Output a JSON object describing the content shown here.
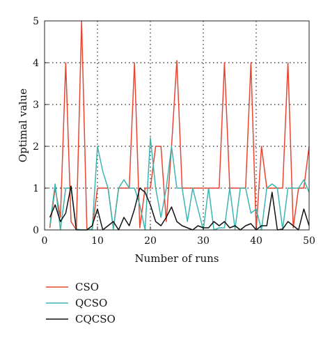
{
  "chart_data": {
    "type": "line",
    "xlabel": "Number of runs",
    "ylabel": "Optimal value",
    "xlim": [
      0,
      50
    ],
    "ylim": [
      0,
      5
    ],
    "xticks": [
      0,
      10,
      20,
      30,
      40,
      50
    ],
    "yticks": [
      0,
      1,
      2,
      3,
      4,
      5
    ],
    "grid": "dotted",
    "legend_position": "below",
    "x": [
      1,
      2,
      3,
      4,
      5,
      6,
      7,
      8,
      9,
      10,
      11,
      12,
      13,
      14,
      15,
      16,
      17,
      18,
      19,
      20,
      21,
      22,
      23,
      24,
      25,
      26,
      27,
      28,
      29,
      30,
      31,
      32,
      33,
      34,
      35,
      36,
      37,
      38,
      39,
      40,
      41,
      42,
      43,
      44,
      45,
      46,
      47,
      48,
      49,
      50
    ],
    "series": [
      {
        "name": "CSO",
        "color": "#e8442f",
        "values": [
          0.05,
          1.0,
          0.3,
          4.0,
          0.2,
          0.0,
          5.0,
          0.02,
          0.0,
          1.0,
          1.0,
          1.0,
          0.03,
          1.0,
          1.0,
          1.0,
          4.0,
          0.05,
          1.0,
          1.0,
          2.0,
          2.0,
          0.2,
          2.0,
          4.05,
          1.0,
          1.0,
          1.0,
          1.0,
          1.0,
          1.0,
          1.0,
          1.0,
          4.0,
          1.0,
          1.0,
          1.0,
          1.0,
          4.0,
          0.0,
          2.0,
          1.0,
          1.0,
          1.0,
          1.0,
          4.0,
          0.05,
          1.0,
          1.0,
          2.0
        ]
      },
      {
        "name": "QCSO",
        "color": "#3ab5b0",
        "values": [
          0.1,
          1.1,
          0.0,
          1.0,
          1.0,
          0.02,
          0.0,
          0.0,
          0.02,
          2.0,
          1.4,
          1.0,
          0.02,
          1.0,
          1.2,
          1.0,
          1.0,
          0.6,
          0.0,
          2.2,
          1.0,
          0.3,
          1.0,
          2.0,
          1.0,
          1.0,
          0.2,
          1.0,
          0.5,
          0.0,
          1.0,
          0.0,
          0.05,
          0.05,
          1.0,
          0.02,
          1.0,
          1.0,
          0.4,
          0.5,
          0.0,
          1.0,
          1.1,
          1.0,
          0.02,
          1.0,
          1.0,
          1.0,
          1.2,
          0.9
        ]
      },
      {
        "name": "CQCSO",
        "color": "#111111",
        "values": [
          0.3,
          0.6,
          0.2,
          0.4,
          1.05,
          0.0,
          0.0,
          0.0,
          0.1,
          0.5,
          0.0,
          0.1,
          0.2,
          0.0,
          0.3,
          0.1,
          0.5,
          1.0,
          0.9,
          0.6,
          0.2,
          0.1,
          0.3,
          0.55,
          0.2,
          0.1,
          0.05,
          0.0,
          0.1,
          0.05,
          0.05,
          0.2,
          0.1,
          0.2,
          0.05,
          0.1,
          0.0,
          0.1,
          0.15,
          0.0,
          0.1,
          0.1,
          0.9,
          0.0,
          0.02,
          0.2,
          0.1,
          0.0,
          0.5,
          0.1
        ]
      }
    ]
  }
}
